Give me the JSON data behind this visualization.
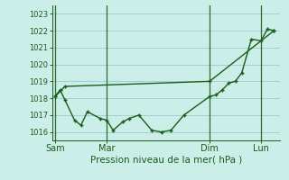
{
  "background_color": "#cceee8",
  "grid_color": "#99cccc",
  "line_color": "#1a5c1a",
  "marker_color": "#1a5c1a",
  "ylabel_ticks": [
    1016,
    1017,
    1018,
    1019,
    1020,
    1021,
    1022,
    1023
  ],
  "xlabel": "Pression niveau de la mer( hPa )",
  "xtick_labels": [
    "Sam",
    "Mar",
    "Dim",
    "Lun"
  ],
  "xtick_positions": [
    0,
    16,
    48,
    64
  ],
  "line1_x": [
    0,
    1.5,
    3,
    6,
    8,
    10,
    14,
    16,
    18,
    21,
    23,
    26,
    30,
    33,
    36,
    40,
    48,
    50,
    52,
    54,
    56,
    58,
    61,
    64,
    66,
    68
  ],
  "line1_y": [
    1018.1,
    1018.5,
    1017.9,
    1016.7,
    1016.4,
    1017.2,
    1016.8,
    1016.7,
    1016.1,
    1016.6,
    1016.8,
    1017.0,
    1016.1,
    1016.0,
    1016.1,
    1017.0,
    1018.1,
    1018.2,
    1018.5,
    1018.9,
    1019.0,
    1019.5,
    1021.5,
    1021.4,
    1022.1,
    1022.0
  ],
  "line2_x": [
    0,
    3,
    48,
    68
  ],
  "line2_y": [
    1018.1,
    1018.7,
    1019.0,
    1022.0
  ],
  "vline_positions": [
    0,
    16,
    48,
    64
  ],
  "ylim": [
    1015.5,
    1023.5
  ],
  "xlim": [
    -1,
    70
  ]
}
